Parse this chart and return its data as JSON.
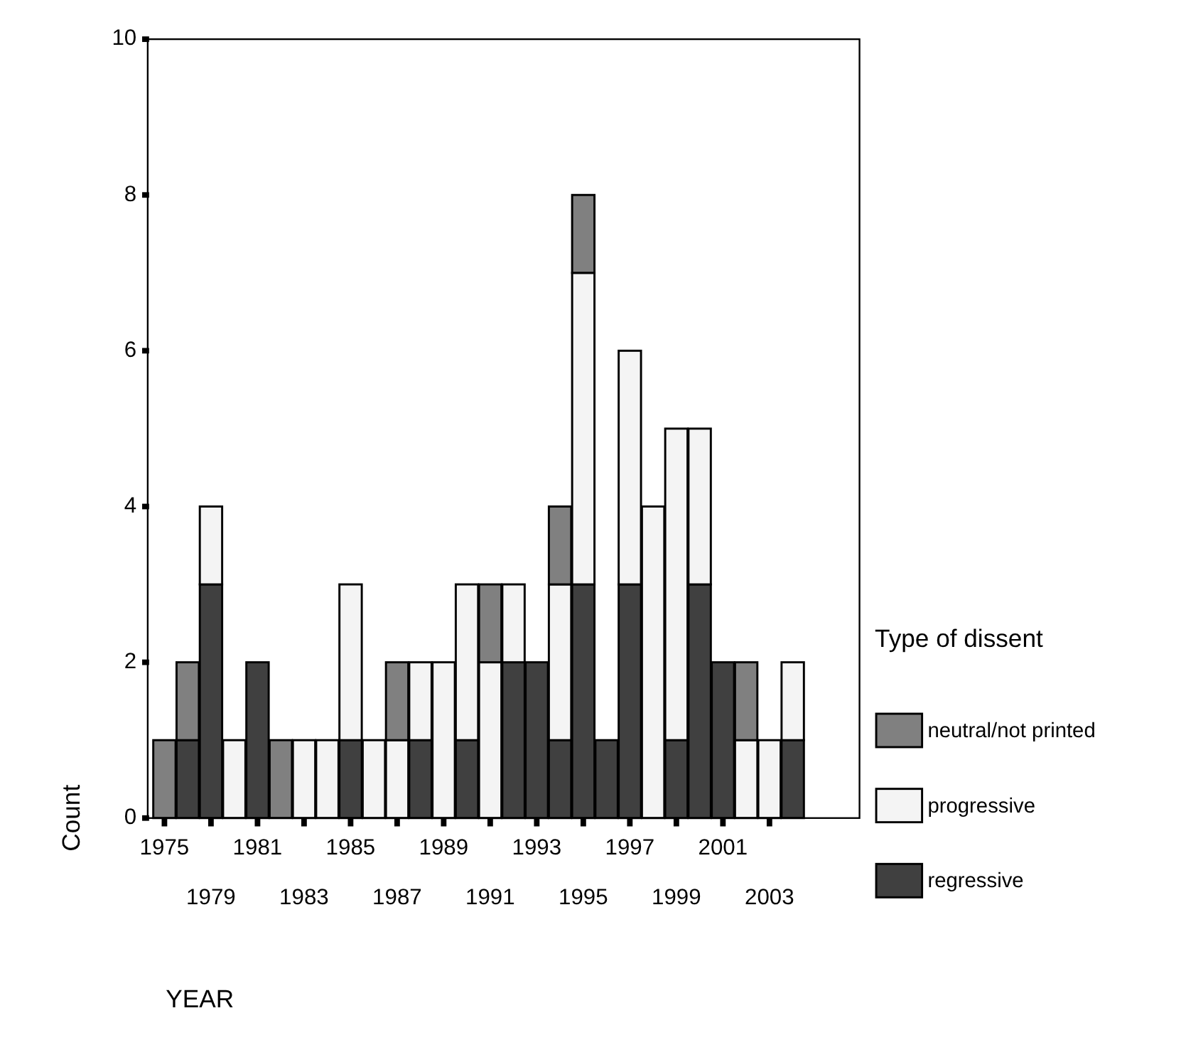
{
  "chart_data": {
    "type": "bar",
    "stacked": true,
    "xlabel": "YEAR",
    "ylabel": "Count",
    "legend_title": "Type of dissent",
    "legend": "right",
    "categories": [
      "1975",
      null,
      "1979",
      null,
      "1981",
      null,
      "1983",
      null,
      "1985",
      null,
      "1987",
      null,
      "1989",
      null,
      "1991",
      null,
      "1993",
      null,
      "1995",
      null,
      "1997",
      null,
      "1999",
      null,
      "2001",
      null,
      "2003",
      null
    ],
    "series": [
      {
        "name": "regressive",
        "color": "#404040",
        "values": [
          0,
          1,
          3,
          0,
          2,
          0,
          0,
          0,
          1,
          0,
          0,
          1,
          0,
          1,
          0,
          2,
          2,
          1,
          3,
          1,
          3,
          0,
          1,
          3,
          2,
          0,
          0,
          1
        ]
      },
      {
        "name": "progressive",
        "color": "#f4f4f4",
        "values": [
          0,
          0,
          1,
          1,
          0,
          0,
          1,
          1,
          2,
          1,
          1,
          1,
          2,
          2,
          2,
          1,
          0,
          2,
          4,
          0,
          3,
          4,
          4,
          2,
          0,
          1,
          1,
          1
        ]
      },
      {
        "name": "neutral/not printed",
        "color": "#808080",
        "values": [
          1,
          1,
          0,
          0,
          0,
          1,
          0,
          0,
          0,
          0,
          1,
          0,
          0,
          0,
          1,
          0,
          0,
          1,
          1,
          0,
          0,
          0,
          0,
          0,
          0,
          1,
          0,
          0
        ]
      }
    ],
    "ylim": [
      0,
      10
    ],
    "yticks": [
      0,
      2,
      4,
      6,
      8,
      10
    ]
  }
}
